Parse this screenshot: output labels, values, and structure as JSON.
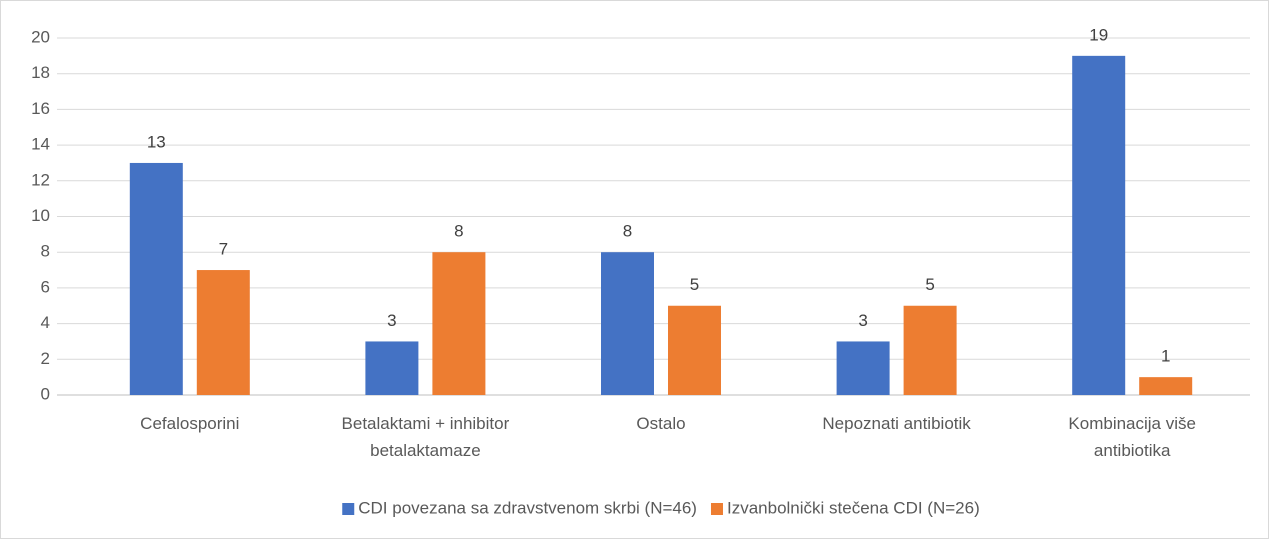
{
  "chart_data": {
    "type": "bar",
    "categories": [
      "Cefalosporini",
      "Betalaktami + inhibitor betalaktamaze",
      "Ostalo",
      "Nepoznati antibiotik",
      "Kombinacija više antibiotika"
    ],
    "series": [
      {
        "name": "CDI povezana sa zdravstvenom skrbi (N=46)",
        "color": "#4472c4",
        "values": [
          13,
          3,
          8,
          3,
          19
        ]
      },
      {
        "name": "Izvanbolnički stečena CDI (N=26)",
        "color": "#ed7d31",
        "values": [
          7,
          8,
          5,
          5,
          1
        ]
      }
    ],
    "ylim": [
      0,
      20
    ],
    "yticks": [
      0,
      2,
      4,
      6,
      8,
      10,
      12,
      14,
      16,
      18,
      20
    ],
    "grid": true,
    "legend": "bottom"
  }
}
